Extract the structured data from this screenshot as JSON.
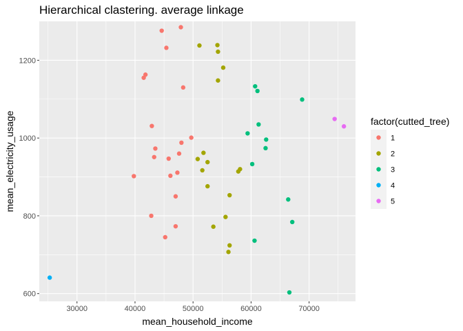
{
  "chart_data": {
    "type": "scatter",
    "title": "Hierarchical clastering.  average  linkage",
    "xlabel": "mean_household_income",
    "ylabel": "mean_electricity_usage",
    "xlim": [
      23500,
      78000
    ],
    "ylim": [
      580,
      1300
    ],
    "x_ticks": [
      30000,
      40000,
      50000,
      60000,
      70000
    ],
    "x_tick_labels": [
      "30000",
      "40000",
      "50000",
      "60000",
      "70000"
    ],
    "y_ticks": [
      600,
      800,
      1000,
      1200
    ],
    "y_tick_labels": [
      "600",
      "800",
      "1000",
      "1200"
    ],
    "grid": true,
    "legend": {
      "title": "factor(cutted_tree)",
      "position": "right",
      "entries": [
        {
          "label": "1",
          "color": "#F8766D"
        },
        {
          "label": "2",
          "color": "#A3A500"
        },
        {
          "label": "3",
          "color": "#00BF7D"
        },
        {
          "label": "4",
          "color": "#00B0F6"
        },
        {
          "label": "5",
          "color": "#E76BF3"
        }
      ]
    },
    "series": [
      {
        "name": "1",
        "color": "#F8766D",
        "points": [
          {
            "x": 44600,
            "y": 1276
          },
          {
            "x": 47900,
            "y": 1285
          },
          {
            "x": 45400,
            "y": 1232
          },
          {
            "x": 41800,
            "y": 1163
          },
          {
            "x": 41500,
            "y": 1155
          },
          {
            "x": 48300,
            "y": 1130
          },
          {
            "x": 42900,
            "y": 1031
          },
          {
            "x": 49700,
            "y": 1001
          },
          {
            "x": 48000,
            "y": 988
          },
          {
            "x": 43500,
            "y": 973
          },
          {
            "x": 47600,
            "y": 960
          },
          {
            "x": 43300,
            "y": 951
          },
          {
            "x": 45800,
            "y": 947
          },
          {
            "x": 47300,
            "y": 911
          },
          {
            "x": 46100,
            "y": 903
          },
          {
            "x": 39800,
            "y": 902
          },
          {
            "x": 47000,
            "y": 850
          },
          {
            "x": 42800,
            "y": 800
          },
          {
            "x": 47000,
            "y": 773
          },
          {
            "x": 45200,
            "y": 745
          }
        ]
      },
      {
        "name": "2",
        "color": "#A3A500",
        "points": [
          {
            "x": 51100,
            "y": 1238
          },
          {
            "x": 54200,
            "y": 1239
          },
          {
            "x": 54300,
            "y": 1222
          },
          {
            "x": 55200,
            "y": 1181
          },
          {
            "x": 54300,
            "y": 1148
          },
          {
            "x": 51800,
            "y": 962
          },
          {
            "x": 50800,
            "y": 946
          },
          {
            "x": 52500,
            "y": 938
          },
          {
            "x": 51600,
            "y": 917
          },
          {
            "x": 58100,
            "y": 920
          },
          {
            "x": 57800,
            "y": 914
          },
          {
            "x": 52500,
            "y": 876
          },
          {
            "x": 56300,
            "y": 853
          },
          {
            "x": 55600,
            "y": 797
          },
          {
            "x": 53500,
            "y": 772
          },
          {
            "x": 56300,
            "y": 724
          },
          {
            "x": 56100,
            "y": 707
          }
        ]
      },
      {
        "name": "3",
        "color": "#00BF7D",
        "points": [
          {
            "x": 60700,
            "y": 1133
          },
          {
            "x": 61100,
            "y": 1121
          },
          {
            "x": 68800,
            "y": 1099
          },
          {
            "x": 61300,
            "y": 1035
          },
          {
            "x": 59400,
            "y": 1012
          },
          {
            "x": 62600,
            "y": 996
          },
          {
            "x": 62500,
            "y": 974
          },
          {
            "x": 60200,
            "y": 933
          },
          {
            "x": 66400,
            "y": 842
          },
          {
            "x": 67100,
            "y": 784
          },
          {
            "x": 60600,
            "y": 736
          },
          {
            "x": 66600,
            "y": 603
          }
        ]
      },
      {
        "name": "4",
        "color": "#00B0F6",
        "points": [
          {
            "x": 25300,
            "y": 641
          }
        ]
      },
      {
        "name": "5",
        "color": "#E76BF3",
        "points": [
          {
            "x": 74400,
            "y": 1049
          },
          {
            "x": 76000,
            "y": 1030
          }
        ]
      }
    ]
  }
}
